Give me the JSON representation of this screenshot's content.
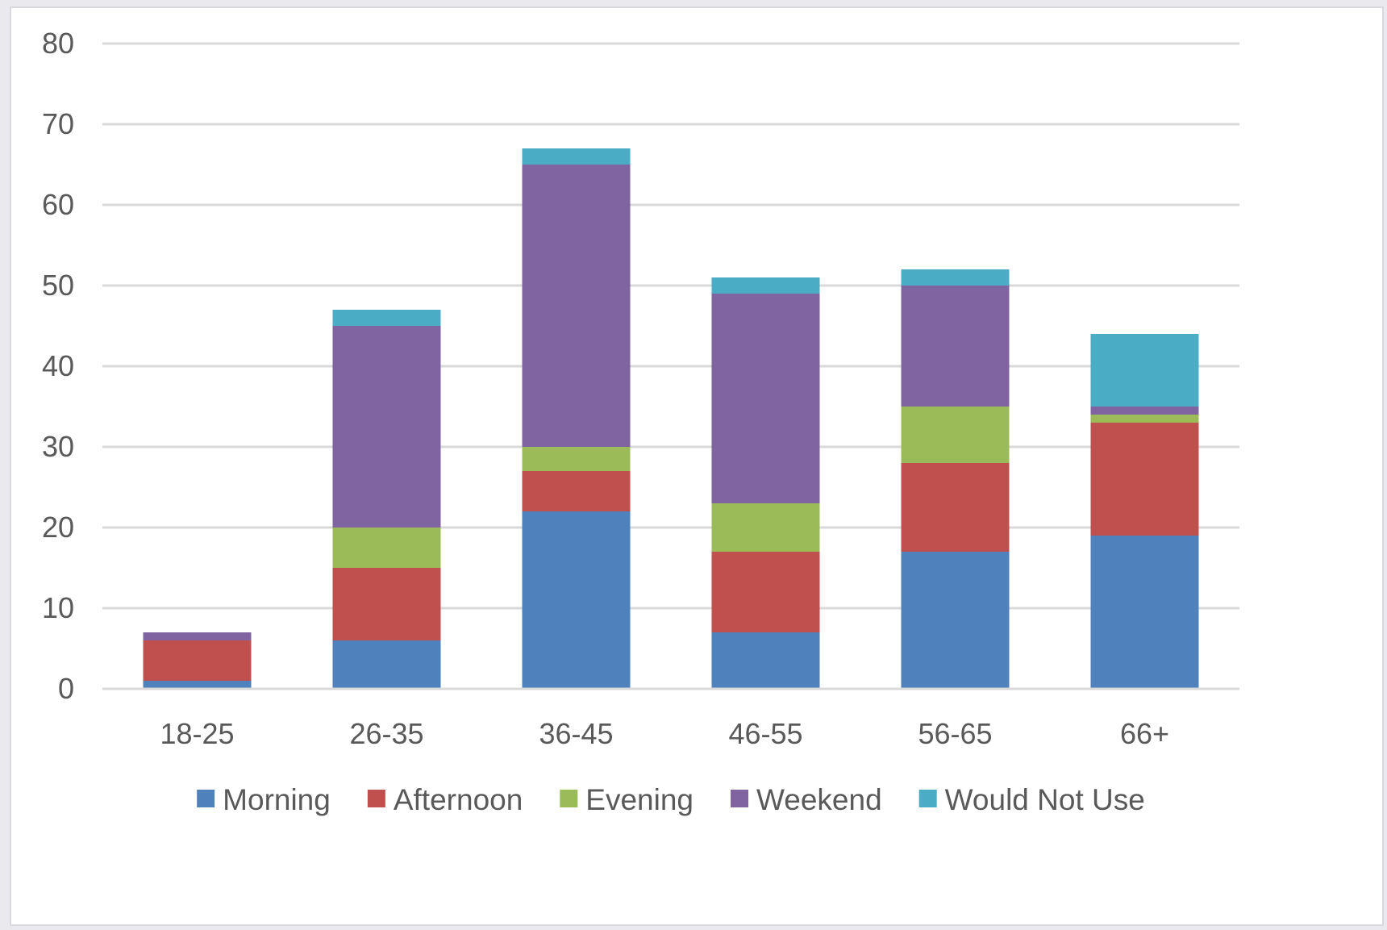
{
  "chart_data": {
    "type": "bar",
    "stacked": true,
    "title": "",
    "xlabel": "",
    "ylabel": "",
    "categories": [
      "18-25",
      "26-35",
      "36-45",
      "46-55",
      "56-65",
      "66+"
    ],
    "series": [
      {
        "name": "Morning",
        "color": "#4F81BD",
        "values": [
          1,
          6,
          22,
          7,
          17,
          19
        ]
      },
      {
        "name": "Afternoon",
        "color": "#C0504D",
        "values": [
          5,
          9,
          5,
          10,
          11,
          14
        ]
      },
      {
        "name": "Evening",
        "color": "#9BBB59",
        "values": [
          0,
          5,
          3,
          6,
          7,
          1
        ]
      },
      {
        "name": "Weekend",
        "color": "#8064A2",
        "values": [
          1,
          25,
          35,
          26,
          15,
          1
        ]
      },
      {
        "name": "Would Not Use",
        "color": "#4BACC6",
        "values": [
          0,
          2,
          2,
          2,
          2,
          9
        ]
      }
    ],
    "ylim": [
      0,
      80
    ],
    "yticks": [
      "0",
      "10",
      "20",
      "30",
      "40",
      "50",
      "60",
      "70",
      "80"
    ],
    "grid": true,
    "legend_position": "bottom"
  }
}
